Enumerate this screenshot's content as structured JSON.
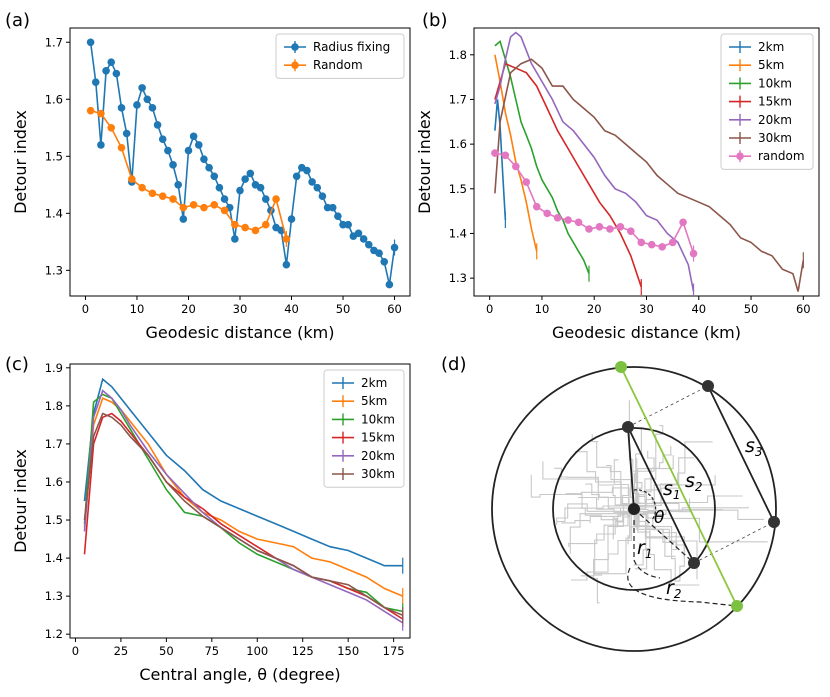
{
  "chart_data": [
    {
      "panel": "(a)",
      "type": "line",
      "xlabel": "Geodesic distance (km)",
      "ylabel": "Detour index",
      "xlim": [
        -3,
        63
      ],
      "ylim": [
        1.255,
        1.725
      ],
      "xticks": [
        "0",
        "10",
        "20",
        "30",
        "40",
        "50",
        "60"
      ],
      "yticks": [
        "1.3",
        "1.4",
        "1.5",
        "1.6",
        "1.7"
      ],
      "legend_position": "top-right",
      "series": [
        {
          "name": "Radius fixing",
          "color": "#1f77b4",
          "marker": true,
          "x": [
            1,
            2,
            3,
            4,
            5,
            6,
            7,
            8,
            9,
            10,
            11,
            12,
            13,
            14,
            15,
            16,
            17,
            18,
            19,
            20,
            21,
            22,
            23,
            24,
            25,
            26,
            27,
            28,
            29,
            30,
            31,
            32,
            33,
            34,
            35,
            36,
            37,
            38,
            39,
            40,
            41,
            42,
            43,
            44,
            45,
            46,
            47,
            48,
            49,
            50,
            51,
            52,
            53,
            54,
            55,
            56,
            57,
            58,
            59,
            60
          ],
          "y": [
            1.7,
            1.63,
            1.52,
            1.65,
            1.665,
            1.645,
            1.585,
            1.54,
            1.455,
            1.59,
            1.62,
            1.6,
            1.585,
            1.555,
            1.53,
            1.51,
            1.485,
            1.45,
            1.39,
            1.51,
            1.535,
            1.52,
            1.495,
            1.48,
            1.465,
            1.445,
            1.425,
            1.41,
            1.355,
            1.44,
            1.46,
            1.47,
            1.45,
            1.445,
            1.425,
            1.405,
            1.375,
            1.37,
            1.31,
            1.39,
            1.465,
            1.48,
            1.475,
            1.455,
            1.445,
            1.43,
            1.41,
            1.41,
            1.395,
            1.38,
            1.38,
            1.36,
            1.365,
            1.355,
            1.345,
            1.335,
            1.33,
            1.315,
            1.275,
            1.34
          ]
        },
        {
          "name": "Random",
          "color": "#ff7f0e",
          "marker": true,
          "x": [
            1,
            3,
            5,
            7,
            9,
            11,
            13,
            15,
            17,
            19,
            21,
            23,
            25,
            27,
            29,
            31,
            33,
            35,
            37,
            39
          ],
          "y": [
            1.58,
            1.575,
            1.55,
            1.515,
            1.46,
            1.445,
            1.435,
            1.43,
            1.425,
            1.41,
            1.415,
            1.41,
            1.415,
            1.405,
            1.38,
            1.375,
            1.37,
            1.38,
            1.425,
            1.355
          ]
        }
      ]
    },
    {
      "panel": "(b)",
      "type": "line",
      "xlabel": "Geodesic distance (km)",
      "ylabel": "Detour index",
      "xlim": [
        -3,
        63
      ],
      "ylim": [
        1.26,
        1.86
      ],
      "xticks": [
        "0",
        "10",
        "20",
        "30",
        "40",
        "50",
        "60"
      ],
      "yticks": [
        "1.3",
        "1.4",
        "1.5",
        "1.6",
        "1.7",
        "1.8"
      ],
      "legend_position": "top-right",
      "series": [
        {
          "name": "2km",
          "color": "#1f77b4",
          "marker": false,
          "x": [
            1,
            1.5,
            2,
            2.5,
            3
          ],
          "y": [
            1.63,
            1.7,
            1.64,
            1.53,
            1.43
          ]
        },
        {
          "name": "5km",
          "color": "#ff7f0e",
          "marker": false,
          "x": [
            1,
            2,
            3,
            4,
            5,
            6,
            7,
            8,
            9
          ],
          "y": [
            1.8,
            1.74,
            1.67,
            1.62,
            1.56,
            1.52,
            1.47,
            1.41,
            1.36
          ]
        },
        {
          "name": "10km",
          "color": "#2ca02c",
          "marker": false,
          "x": [
            1,
            2,
            3,
            4,
            5,
            6,
            7,
            8,
            9,
            10,
            11,
            12,
            13,
            14,
            15,
            16,
            17,
            18,
            19
          ],
          "y": [
            1.82,
            1.83,
            1.79,
            1.75,
            1.7,
            1.65,
            1.62,
            1.59,
            1.55,
            1.52,
            1.5,
            1.48,
            1.45,
            1.43,
            1.4,
            1.38,
            1.36,
            1.34,
            1.31
          ]
        },
        {
          "name": "15km",
          "color": "#d62728",
          "marker": false,
          "x": [
            1,
            3,
            5,
            7,
            9,
            11,
            13,
            15,
            17,
            19,
            21,
            23,
            25,
            27,
            29
          ],
          "y": [
            1.7,
            1.78,
            1.77,
            1.76,
            1.73,
            1.68,
            1.63,
            1.59,
            1.55,
            1.51,
            1.47,
            1.44,
            1.4,
            1.35,
            1.28
          ]
        },
        {
          "name": "20km",
          "color": "#9467bd",
          "marker": false,
          "x": [
            1,
            2,
            3,
            4,
            5,
            6,
            8,
            10,
            12,
            14,
            16,
            18,
            20,
            22,
            24,
            26,
            28,
            30,
            32,
            34,
            36,
            38,
            39
          ],
          "y": [
            1.69,
            1.73,
            1.79,
            1.84,
            1.85,
            1.84,
            1.78,
            1.74,
            1.7,
            1.65,
            1.63,
            1.6,
            1.57,
            1.53,
            1.5,
            1.49,
            1.47,
            1.44,
            1.43,
            1.4,
            1.38,
            1.33,
            1.27
          ]
        },
        {
          "name": "30km",
          "color": "#8c564b",
          "marker": false,
          "x": [
            1,
            2,
            4,
            6,
            8,
            10,
            12,
            14,
            16,
            18,
            20,
            22,
            24,
            26,
            28,
            30,
            32,
            34,
            36,
            38,
            40,
            42,
            44,
            46,
            48,
            50,
            52,
            54,
            56,
            58,
            59,
            60
          ],
          "y": [
            1.49,
            1.65,
            1.76,
            1.78,
            1.79,
            1.77,
            1.73,
            1.73,
            1.7,
            1.68,
            1.66,
            1.63,
            1.62,
            1.6,
            1.58,
            1.56,
            1.53,
            1.51,
            1.49,
            1.48,
            1.47,
            1.46,
            1.44,
            1.42,
            1.39,
            1.38,
            1.36,
            1.35,
            1.32,
            1.31,
            1.27,
            1.34
          ]
        },
        {
          "name": "random",
          "color": "#e377c2",
          "marker": true,
          "x": [
            1,
            3,
            5,
            7,
            9,
            11,
            13,
            15,
            17,
            19,
            21,
            23,
            25,
            27,
            29,
            31,
            33,
            35,
            37,
            39
          ],
          "y": [
            1.58,
            1.575,
            1.55,
            1.515,
            1.46,
            1.445,
            1.435,
            1.43,
            1.425,
            1.41,
            1.415,
            1.41,
            1.415,
            1.405,
            1.38,
            1.375,
            1.37,
            1.38,
            1.425,
            1.355
          ]
        }
      ]
    },
    {
      "panel": "(c)",
      "type": "line",
      "xlabel": "Central angle, θ (degree)",
      "ylabel": "Detour index",
      "xlim": [
        -3,
        184
      ],
      "ylim": [
        1.19,
        1.91
      ],
      "xticks": [
        "0",
        "25",
        "50",
        "75",
        "100",
        "125",
        "150",
        "175"
      ],
      "yticks": [
        "1.2",
        "1.3",
        "1.4",
        "1.5",
        "1.6",
        "1.7",
        "1.8",
        "1.9"
      ],
      "legend_position": "top-right",
      "series": [
        {
          "name": "2km",
          "color": "#1f77b4",
          "marker": false,
          "x": [
            5,
            10,
            15,
            20,
            25,
            30,
            40,
            50,
            60,
            70,
            80,
            90,
            100,
            110,
            120,
            130,
            140,
            150,
            160,
            170,
            180
          ],
          "y": [
            1.55,
            1.78,
            1.87,
            1.85,
            1.82,
            1.79,
            1.73,
            1.67,
            1.63,
            1.58,
            1.55,
            1.53,
            1.51,
            1.49,
            1.47,
            1.45,
            1.43,
            1.42,
            1.4,
            1.38,
            1.38
          ]
        },
        {
          "name": "5km",
          "color": "#ff7f0e",
          "marker": false,
          "x": [
            5,
            10,
            15,
            20,
            25,
            30,
            40,
            50,
            60,
            70,
            80,
            90,
            100,
            110,
            120,
            130,
            140,
            150,
            160,
            170,
            180
          ],
          "y": [
            1.48,
            1.75,
            1.82,
            1.81,
            1.79,
            1.76,
            1.7,
            1.62,
            1.56,
            1.52,
            1.5,
            1.47,
            1.45,
            1.44,
            1.43,
            1.4,
            1.39,
            1.37,
            1.35,
            1.32,
            1.3
          ]
        },
        {
          "name": "10km",
          "color": "#2ca02c",
          "marker": false,
          "x": [
            5,
            10,
            15,
            20,
            25,
            30,
            40,
            50,
            60,
            70,
            80,
            90,
            100,
            110,
            120,
            130,
            140,
            150,
            160,
            170,
            180
          ],
          "y": [
            1.49,
            1.81,
            1.83,
            1.82,
            1.78,
            1.74,
            1.66,
            1.58,
            1.52,
            1.51,
            1.48,
            1.44,
            1.41,
            1.39,
            1.37,
            1.35,
            1.34,
            1.32,
            1.31,
            1.27,
            1.26
          ]
        },
        {
          "name": "15km",
          "color": "#d62728",
          "marker": false,
          "x": [
            5,
            10,
            15,
            20,
            25,
            30,
            40,
            50,
            60,
            70,
            80,
            90,
            100,
            110,
            120,
            130,
            140,
            150,
            160,
            170,
            180
          ],
          "y": [
            1.41,
            1.7,
            1.77,
            1.78,
            1.76,
            1.73,
            1.67,
            1.6,
            1.56,
            1.53,
            1.49,
            1.46,
            1.43,
            1.4,
            1.38,
            1.35,
            1.34,
            1.32,
            1.3,
            1.27,
            1.24
          ]
        },
        {
          "name": "20km",
          "color": "#9467bd",
          "marker": false,
          "x": [
            5,
            10,
            15,
            20,
            25,
            30,
            40,
            50,
            60,
            70,
            80,
            90,
            100,
            110,
            120,
            130,
            140,
            150,
            160,
            170,
            180
          ],
          "y": [
            1.47,
            1.77,
            1.84,
            1.82,
            1.79,
            1.75,
            1.68,
            1.62,
            1.57,
            1.52,
            1.48,
            1.45,
            1.42,
            1.4,
            1.37,
            1.35,
            1.33,
            1.31,
            1.29,
            1.26,
            1.23
          ]
        },
        {
          "name": "30km",
          "color": "#8c564b",
          "marker": false,
          "x": [
            5,
            10,
            15,
            20,
            25,
            30,
            40,
            50,
            60,
            70,
            80,
            90,
            100,
            110,
            120,
            130,
            140,
            150,
            160,
            170,
            180
          ],
          "y": [
            1.5,
            1.72,
            1.78,
            1.77,
            1.75,
            1.72,
            1.67,
            1.6,
            1.55,
            1.51,
            1.48,
            1.45,
            1.42,
            1.4,
            1.38,
            1.35,
            1.34,
            1.33,
            1.3,
            1.27,
            1.25
          ]
        }
      ]
    }
  ],
  "panel_labels": {
    "a": "(a)",
    "b": "(b)",
    "c": "(c)",
    "d": "(d)"
  },
  "diagram": {
    "label_s1": "s",
    "label_s1_sub": "1",
    "label_s2": "s",
    "label_s2_sub": "2",
    "label_s3": "s",
    "label_s3_sub": "3",
    "label_theta": "θ",
    "label_r1": "r",
    "label_r1_sub": "1",
    "label_r2": "r",
    "label_r2_sub": "2",
    "colors": {
      "circle": "#222222",
      "roads": "#c8c8c8",
      "chord": "#8dc63f",
      "node": "#333333",
      "green_node": "#7cc142"
    }
  }
}
